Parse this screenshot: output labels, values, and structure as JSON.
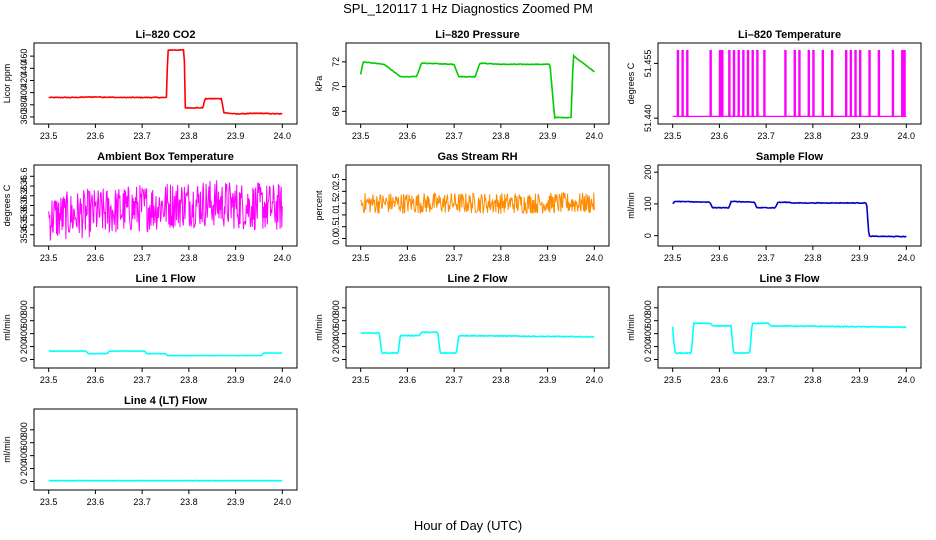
{
  "figure": {
    "title": "SPL_120117  1 Hz Diagnostics Zoomed PM",
    "xlabel": "Hour of Day (UTC)"
  },
  "chart_data": [
    {
      "id": "co2",
      "type": "line",
      "title": "Li–820 CO2",
      "ylabel": "Licor ppm",
      "color": "#ff0000",
      "xlim": [
        23.49,
        24.01
      ],
      "ylim": [
        355,
        475
      ],
      "xticks": [
        "23.5",
        "23.6",
        "23.7",
        "23.8",
        "23.9",
        "24.0"
      ],
      "yticks": [
        [
          "360",
          "360"
        ],
        [
          "380",
          "380"
        ],
        [
          "400",
          "400"
        ],
        [
          "420",
          "420"
        ],
        [
          "440",
          "440"
        ],
        [
          "460",
          "460"
        ]
      ],
      "series": [
        {
          "x": [
            23.5,
            23.55,
            23.6,
            23.65,
            23.7,
            23.745,
            23.752,
            23.755,
            23.79,
            23.792,
            23.83,
            23.835,
            23.87,
            23.875,
            23.9,
            23.95,
            24.0
          ],
          "y": [
            392,
            392,
            393,
            392,
            392,
            392,
            392,
            470,
            470,
            375,
            375,
            390,
            390,
            367,
            365,
            366,
            365
          ],
          "noise": 1.2
        }
      ]
    },
    {
      "id": "pressure",
      "type": "line",
      "title": "Li–820 Pressure",
      "ylabel": "kPa",
      "color": "#00cc00",
      "xlim": [
        23.49,
        24.01
      ],
      "ylim": [
        67.3,
        73.2
      ],
      "xticks": [
        "23.5",
        "23.6",
        "23.7",
        "23.8",
        "23.9",
        "24.0"
      ],
      "yticks": [
        [
          "68",
          "68"
        ],
        [
          "70",
          "70"
        ],
        [
          "72",
          "72"
        ]
      ],
      "series": [
        {
          "x": [
            23.5,
            23.505,
            23.55,
            23.585,
            23.62,
            23.63,
            23.7,
            23.71,
            23.745,
            23.755,
            23.8,
            23.905,
            23.915,
            23.95,
            23.955,
            24.0
          ],
          "y": [
            71.0,
            72.0,
            71.8,
            70.8,
            70.8,
            71.9,
            71.8,
            70.8,
            70.8,
            71.9,
            71.8,
            71.8,
            67.5,
            67.5,
            72.5,
            71.2
          ],
          "noise": 0.05
        }
      ]
    },
    {
      "id": "licor-temp",
      "type": "line",
      "title": "Li–820 Temperature",
      "ylabel": "degrees C",
      "color": "#ff00ff",
      "xlim": [
        23.49,
        24.01
      ],
      "ylim": [
        51.4395,
        51.4595
      ],
      "xticks": [
        "23.5",
        "23.6",
        "23.7",
        "23.8",
        "23.9",
        "24.0"
      ],
      "yticks": [
        [
          "51.440",
          "51.44"
        ],
        [
          "51.455",
          "51.455"
        ]
      ],
      "spikes": {
        "base": 51.4405,
        "top": 51.4585,
        "x": [
          23.51,
          23.52,
          23.53,
          23.58,
          23.6,
          23.605,
          23.62,
          23.63,
          23.64,
          23.65,
          23.66,
          23.67,
          23.68,
          23.695,
          23.74,
          23.76,
          23.77,
          23.79,
          23.8,
          23.82,
          23.84,
          23.87,
          23.88,
          23.89,
          23.9,
          23.92,
          23.94,
          23.97,
          23.99,
          23.995
        ]
      }
    },
    {
      "id": "ambient-temp",
      "type": "line",
      "title": "Ambient Box Temperature",
      "ylabel": "degrees C",
      "color": "#ff00ff",
      "xlim": [
        23.49,
        24.01
      ],
      "ylim": [
        35.25,
        36.75
      ],
      "xticks": [
        "23.5",
        "23.6",
        "23.7",
        "23.8",
        "23.9",
        "24.0"
      ],
      "yticks": [
        [
          "35.4",
          "35.4"
        ],
        [
          "35.6",
          "35.6"
        ],
        [
          "35.8",
          "35.8"
        ],
        [
          "36.0",
          "36.0"
        ],
        [
          "36.2",
          "36.2"
        ],
        [
          "36.4",
          "36.4"
        ],
        [
          "36.6",
          "36.6"
        ]
      ],
      "series": [
        {
          "x": [
            23.5,
            23.6,
            23.7,
            23.8,
            23.85,
            23.9,
            24.0
          ],
          "y": [
            35.75,
            35.85,
            35.95,
            36.05,
            36.05,
            36.0,
            35.95
          ],
          "noise": 0.5,
          "band": true
        }
      ]
    },
    {
      "id": "gas-rh",
      "type": "line",
      "title": "Gas Stream RH",
      "ylabel": "percent",
      "color": "#ff8c00",
      "xlim": [
        23.49,
        24.01
      ],
      "ylim": [
        -0.15,
        2.95
      ],
      "xticks": [
        "23.5",
        "23.6",
        "23.7",
        "23.8",
        "23.9",
        "24.0"
      ],
      "yticks": [
        [
          "0.0",
          "0.0"
        ],
        [
          "0.5",
          "0.5"
        ],
        [
          "1.0",
          "1.0"
        ],
        [
          "1.5",
          "1.5"
        ],
        [
          "2.0",
          "2.0"
        ],
        [
          "2.5",
          "2.5"
        ]
      ],
      "series": [
        {
          "x": [
            23.5,
            24.0
          ],
          "y": [
            1.5,
            1.5
          ],
          "noise": 0.45,
          "band": true
        }
      ]
    },
    {
      "id": "sample-flow",
      "type": "line",
      "title": "Sample Flow",
      "ylabel": "ml/min",
      "color": "#0000cc",
      "xlim": [
        23.49,
        24.01
      ],
      "ylim": [
        -20,
        210
      ],
      "xticks": [
        "23.5",
        "23.6",
        "23.7",
        "23.8",
        "23.9",
        "24.0"
      ],
      "yticks": [
        [
          "0",
          "0"
        ],
        [
          "100",
          "100"
        ],
        [
          "200",
          "200"
        ]
      ],
      "series": [
        {
          "x": [
            23.5,
            23.505,
            23.58,
            23.585,
            23.62,
            23.625,
            23.675,
            23.68,
            23.72,
            23.725,
            23.75,
            23.755,
            23.915,
            23.92,
            24.0
          ],
          "y": [
            100,
            108,
            105,
            88,
            88,
            108,
            105,
            88,
            88,
            105,
            105,
            103,
            103,
            -2,
            -3
          ],
          "noise": 2
        }
      ]
    },
    {
      "id": "line1-flow",
      "type": "line",
      "title": "Line 1 Flow",
      "ylabel": "ml/min",
      "color": "#00ffff",
      "xlim": [
        23.49,
        24.01
      ],
      "ylim": [
        -70,
        1060
      ],
      "xticks": [
        "23.5",
        "23.6",
        "23.7",
        "23.8",
        "23.9",
        "24.0"
      ],
      "yticks": [
        [
          "0",
          "0"
        ],
        [
          "200",
          "200"
        ],
        [
          "400",
          "400"
        ],
        [
          "600",
          "600"
        ],
        [
          "800",
          "800"
        ]
      ],
      "series": [
        {
          "x": [
            23.5,
            23.58,
            23.585,
            23.625,
            23.63,
            23.705,
            23.71,
            23.75,
            23.755,
            23.955,
            23.96,
            24.0
          ],
          "y": [
            130,
            130,
            90,
            90,
            130,
            130,
            90,
            90,
            60,
            60,
            100,
            100
          ],
          "noise": 5
        }
      ]
    },
    {
      "id": "line2-flow",
      "type": "line",
      "title": "Line 2 Flow",
      "ylabel": "ml/min",
      "color": "#00ffff",
      "xlim": [
        23.49,
        24.01
      ],
      "ylim": [
        -70,
        1060
      ],
      "xticks": [
        "23.5",
        "23.6",
        "23.7",
        "23.8",
        "23.9",
        "24.0"
      ],
      "yticks": [
        [
          "0",
          "0"
        ],
        [
          "200",
          "200"
        ],
        [
          "400",
          "400"
        ],
        [
          "600",
          "600"
        ],
        [
          "800",
          "800"
        ]
      ],
      "series": [
        {
          "x": [
            23.5,
            23.54,
            23.545,
            23.58,
            23.585,
            23.625,
            23.63,
            23.665,
            23.67,
            23.705,
            23.71,
            24.0
          ],
          "y": [
            410,
            410,
            100,
            100,
            370,
            370,
            420,
            420,
            100,
            100,
            370,
            350
          ],
          "noise": 12
        }
      ]
    },
    {
      "id": "line3-flow",
      "type": "line",
      "title": "Line 3 Flow",
      "ylabel": "ml/min",
      "color": "#00ffff",
      "xlim": [
        23.49,
        24.01
      ],
      "ylim": [
        -70,
        1060
      ],
      "xticks": [
        "23.5",
        "23.6",
        "23.7",
        "23.8",
        "23.9",
        "24.0"
      ],
      "yticks": [
        [
          "0",
          "0"
        ],
        [
          "200",
          "200"
        ],
        [
          "400",
          "400"
        ],
        [
          "600",
          "600"
        ],
        [
          "800",
          "800"
        ]
      ],
      "series": [
        {
          "x": [
            23.5,
            23.502,
            23.505,
            23.54,
            23.545,
            23.58,
            23.585,
            23.625,
            23.63,
            23.665,
            23.67,
            23.705,
            23.71,
            24.0
          ],
          "y": [
            500,
            300,
            100,
            100,
            560,
            560,
            520,
            520,
            100,
            100,
            560,
            560,
            520,
            500
          ],
          "noise": 12
        }
      ]
    },
    {
      "id": "line4-flow",
      "type": "line",
      "title": "Line 4 (LT) Flow",
      "ylabel": "ml/min",
      "color": "#00ffff",
      "xlim": [
        23.49,
        24.01
      ],
      "ylim": [
        -70,
        1060
      ],
      "xticks": [
        "23.5",
        "23.6",
        "23.7",
        "23.8",
        "23.9",
        "24.0"
      ],
      "yticks": [
        [
          "0",
          "0"
        ],
        [
          "200",
          "200"
        ],
        [
          "400",
          "400"
        ],
        [
          "600",
          "600"
        ],
        [
          "800",
          "800"
        ]
      ],
      "series": [
        {
          "x": [
            23.5,
            24.0
          ],
          "y": [
            12,
            12
          ],
          "noise": 4
        }
      ]
    }
  ]
}
